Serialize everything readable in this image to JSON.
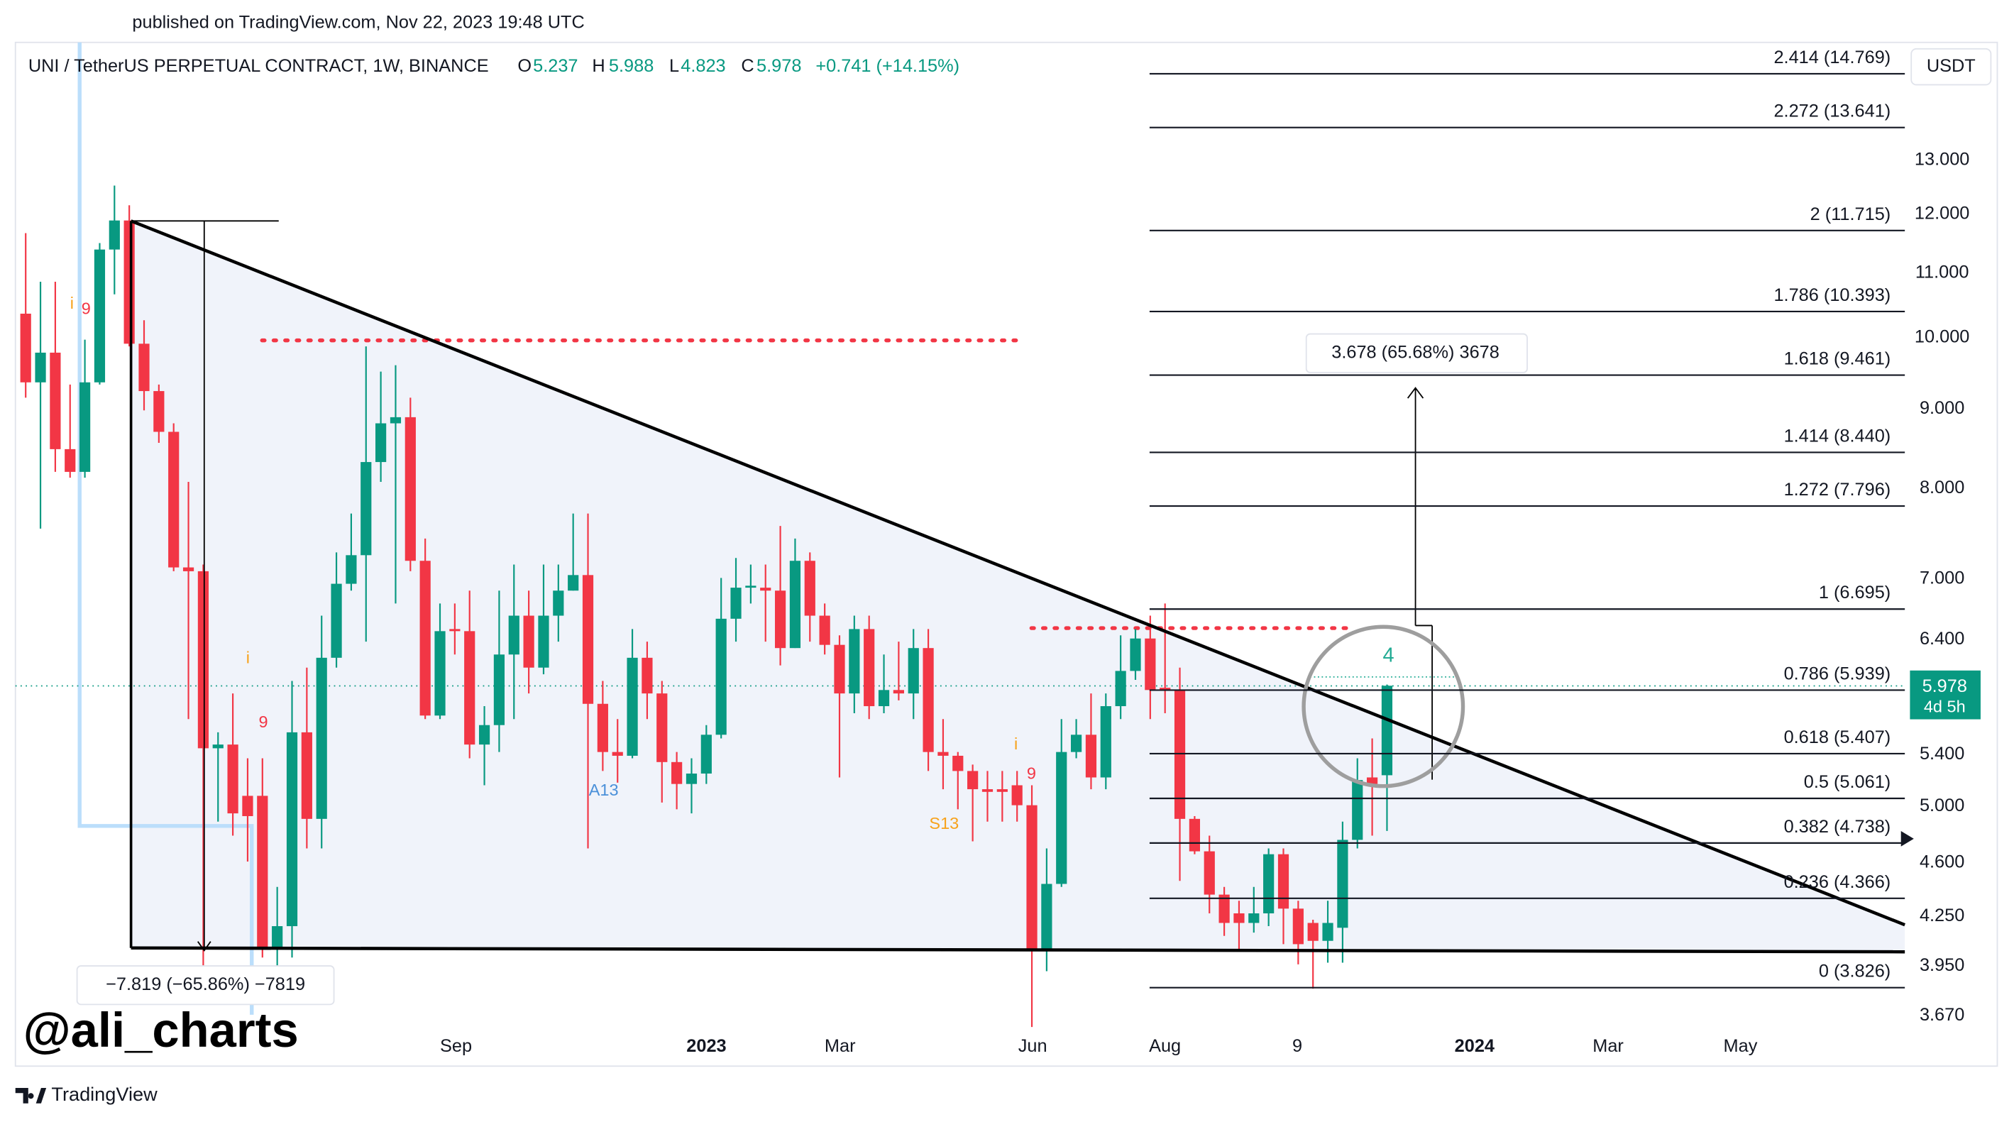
{
  "header": {
    "published": "published on TradingView.com, Nov 22, 2023 19:48 UTC",
    "symbol": "UNI / TetherUS PERPETUAL CONTRACT, 1W, BINANCE",
    "o": "O",
    "h": "H",
    "l": "L",
    "c": "C",
    "change": "+0.741 (+14.15%)"
  },
  "chart_data": {
    "type": "candlestick",
    "up_color": "#089981",
    "down_color": "#f23645",
    "log_scale": true,
    "ylim": [
      3.407,
      15.47
    ],
    "yticks": [
      {
        "value": 3.67,
        "label": "3.670"
      },
      {
        "value": 3.95,
        "label": "3.950"
      },
      {
        "value": 4.25,
        "label": "4.250"
      },
      {
        "value": 4.6,
        "label": "4.600"
      },
      {
        "value": 5,
        "label": "5.000"
      },
      {
        "value": 5.4,
        "label": "5.400"
      },
      {
        "value": 6.4,
        "label": "6.400"
      },
      {
        "value": 7,
        "label": "7.000"
      },
      {
        "value": 8,
        "label": "8.000"
      },
      {
        "value": 9,
        "label": "9.000"
      },
      {
        "value": 10,
        "label": "10.000"
      },
      {
        "value": 11,
        "label": "11.000"
      },
      {
        "value": 12,
        "label": "12.000"
      },
      {
        "value": 13,
        "label": "13.000"
      }
    ],
    "x_labels": [
      "Sep",
      "2023",
      "Mar",
      "Jun",
      "Aug",
      "9",
      "2024",
      "Mar",
      "May"
    ],
    "values": [
      [
        10.36,
        11.67,
        9.15,
        9.36
      ],
      [
        9.36,
        10.86,
        7.54,
        9.78
      ],
      [
        9.78,
        10.86,
        8.2,
        8.48
      ],
      [
        8.48,
        9.33,
        8.13,
        8.2
      ],
      [
        8.2,
        9.97,
        8.13,
        9.36
      ],
      [
        9.36,
        11.5,
        9.33,
        11.39
      ],
      [
        11.39,
        12.52,
        10.66,
        11.89
      ],
      [
        11.89,
        12.16,
        9.87,
        9.91
      ],
      [
        9.91,
        10.26,
        8.98,
        9.24
      ],
      [
        9.24,
        9.33,
        8.56,
        8.7
      ],
      [
        8.7,
        8.81,
        7.08,
        7.12
      ],
      [
        7.12,
        8.08,
        5.69,
        7.08
      ],
      [
        7.08,
        7.15,
        3.74,
        5.45
      ],
      [
        5.45,
        5.58,
        4.89,
        5.48
      ],
      [
        5.48,
        5.91,
        4.79,
        4.95
      ],
      [
        5.08,
        5.37,
        4.61,
        4.93
      ],
      [
        5.08,
        5.37,
        4.0,
        4.05
      ],
      [
        4.05,
        4.44,
        3.74,
        4.19
      ],
      [
        4.19,
        6.02,
        4.0,
        5.58
      ],
      [
        5.58,
        6.14,
        4.7,
        4.91
      ],
      [
        4.91,
        6.63,
        4.7,
        6.23
      ],
      [
        6.23,
        7.28,
        6.14,
        6.95
      ],
      [
        6.95,
        7.71,
        6.88,
        7.25
      ],
      [
        7.25,
        9.87,
        6.38,
        8.32
      ],
      [
        8.32,
        9.51,
        8.08,
        8.81
      ],
      [
        8.81,
        9.6,
        6.75,
        8.89
      ],
      [
        8.89,
        9.15,
        7.08,
        7.19
      ],
      [
        7.19,
        7.43,
        5.69,
        5.72
      ],
      [
        5.72,
        6.75,
        5.69,
        6.48
      ],
      [
        6.5,
        6.75,
        6.26,
        6.48
      ],
      [
        6.48,
        6.88,
        5.37,
        5.48
      ],
      [
        5.48,
        5.8,
        5.16,
        5.64
      ],
      [
        5.64,
        6.88,
        5.42,
        6.26
      ],
      [
        6.26,
        7.15,
        5.69,
        6.63
      ],
      [
        6.63,
        6.88,
        5.91,
        6.14
      ],
      [
        6.14,
        7.15,
        6.08,
        6.63
      ],
      [
        6.63,
        7.15,
        6.38,
        6.88
      ],
      [
        6.88,
        7.71,
        6.88,
        7.04
      ],
      [
        7.04,
        7.71,
        4.7,
        5.82
      ],
      [
        5.82,
        6.02,
        5.27,
        5.42
      ],
      [
        5.42,
        5.69,
        5.18,
        5.39
      ],
      [
        5.39,
        6.5,
        5.37,
        6.23
      ],
      [
        6.23,
        6.38,
        5.69,
        5.91
      ],
      [
        5.91,
        6.02,
        5.03,
        5.34
      ],
      [
        5.34,
        5.42,
        4.98,
        5.17
      ],
      [
        5.17,
        5.37,
        4.95,
        5.25
      ],
      [
        5.25,
        5.64,
        5.17,
        5.56
      ],
      [
        5.56,
        7.01,
        5.53,
        6.6
      ],
      [
        6.6,
        7.22,
        6.38,
        6.91
      ],
      [
        6.91,
        7.15,
        6.75,
        6.93
      ],
      [
        6.91,
        7.15,
        6.38,
        6.88
      ],
      [
        6.88,
        7.57,
        6.16,
        6.32
      ],
      [
        6.32,
        7.43,
        6.32,
        7.19
      ],
      [
        7.19,
        7.28,
        6.38,
        6.63
      ],
      [
        6.63,
        6.75,
        6.26,
        6.35
      ],
      [
        6.35,
        6.44,
        5.22,
        5.91
      ],
      [
        5.91,
        6.63,
        5.74,
        6.5
      ],
      [
        6.5,
        6.63,
        5.69,
        5.8
      ],
      [
        5.8,
        6.26,
        5.74,
        5.94
      ],
      [
        5.94,
        6.38,
        5.85,
        5.91
      ],
      [
        5.91,
        6.5,
        5.69,
        6.32
      ],
      [
        6.32,
        6.5,
        5.27,
        5.42
      ],
      [
        5.42,
        5.69,
        5.13,
        5.39
      ],
      [
        5.39,
        5.42,
        4.98,
        5.27
      ],
      [
        5.27,
        5.32,
        4.75,
        5.13
      ],
      [
        5.13,
        5.27,
        4.89,
        5.11
      ],
      [
        5.13,
        5.27,
        4.89,
        5.11
      ],
      [
        5.16,
        5.27,
        4.89,
        5.01
      ],
      [
        5.01,
        5.16,
        3.61,
        4.05
      ],
      [
        4.05,
        4.7,
        3.92,
        4.46
      ],
      [
        4.46,
        5.69,
        4.44,
        5.42
      ],
      [
        5.42,
        5.69,
        5.37,
        5.56
      ],
      [
        5.56,
        5.91,
        5.13,
        5.22
      ],
      [
        5.22,
        5.91,
        5.13,
        5.8
      ],
      [
        5.8,
        6.44,
        5.69,
        6.11
      ],
      [
        6.11,
        6.5,
        6.03,
        6.41
      ],
      [
        6.41,
        6.63,
        5.69,
        5.94
      ],
      [
        5.96,
        6.75,
        5.74,
        5.94
      ],
      [
        5.94,
        6.14,
        4.48,
        4.91
      ],
      [
        4.91,
        4.93,
        4.66,
        4.68
      ],
      [
        4.68,
        4.79,
        4.27,
        4.39
      ],
      [
        4.39,
        4.44,
        4.13,
        4.21
      ],
      [
        4.27,
        4.35,
        4.04,
        4.21
      ],
      [
        4.21,
        4.44,
        4.15,
        4.27
      ],
      [
        4.27,
        4.7,
        4.19,
        4.66
      ],
      [
        4.66,
        4.7,
        4.08,
        4.3
      ],
      [
        4.3,
        4.35,
        3.96,
        4.08
      ],
      [
        4.21,
        4.23,
        3.82,
        4.1
      ],
      [
        4.1,
        4.35,
        3.97,
        4.21
      ],
      [
        4.18,
        4.89,
        3.97,
        4.76
      ],
      [
        4.76,
        5.37,
        4.7,
        5.2
      ],
      [
        5.22,
        5.53,
        4.79,
        5.17
      ],
      [
        5.237,
        5.988,
        4.823,
        5.978
      ]
    ],
    "currency": "USDT",
    "countdown": "4d 5h",
    "fib_levels": [
      {
        "value": 14.769,
        "label": "2.414 (14.769)"
      },
      {
        "value": 13.641,
        "label": "2.272 (13.641)"
      },
      {
        "value": 11.715,
        "label": "2 (11.715)"
      },
      {
        "value": 10.393,
        "label": "1.786 (10.393)"
      },
      {
        "value": 9.461,
        "label": "1.618 (9.461)"
      },
      {
        "value": 8.44,
        "label": "1.414 (8.440)"
      },
      {
        "value": 7.796,
        "label": "1.272 (7.796)"
      },
      {
        "value": 6.695,
        "label": "1 (6.695)"
      },
      {
        "value": 5.939,
        "label": "0.786 (5.939)"
      },
      {
        "value": 5.407,
        "label": "0.618 (5.407)"
      },
      {
        "value": 5.061,
        "label": "0.5 (5.061)"
      },
      {
        "value": 4.738,
        "label": "0.382 (4.738)"
      },
      {
        "value": 4.366,
        "label": "0.236 (4.366)"
      },
      {
        "value": 3.826,
        "label": "0 (3.826)"
      }
    ],
    "measures": [
      "3.678 (65.68%) 3678",
      "−7.819 (−65.86%) −7819"
    ],
    "annotations": [
      "9",
      "i",
      "9",
      "i",
      "A13",
      "S13",
      "9",
      "i",
      "4"
    ]
  },
  "watermark": "@ali_charts",
  "footer": "TradingView"
}
